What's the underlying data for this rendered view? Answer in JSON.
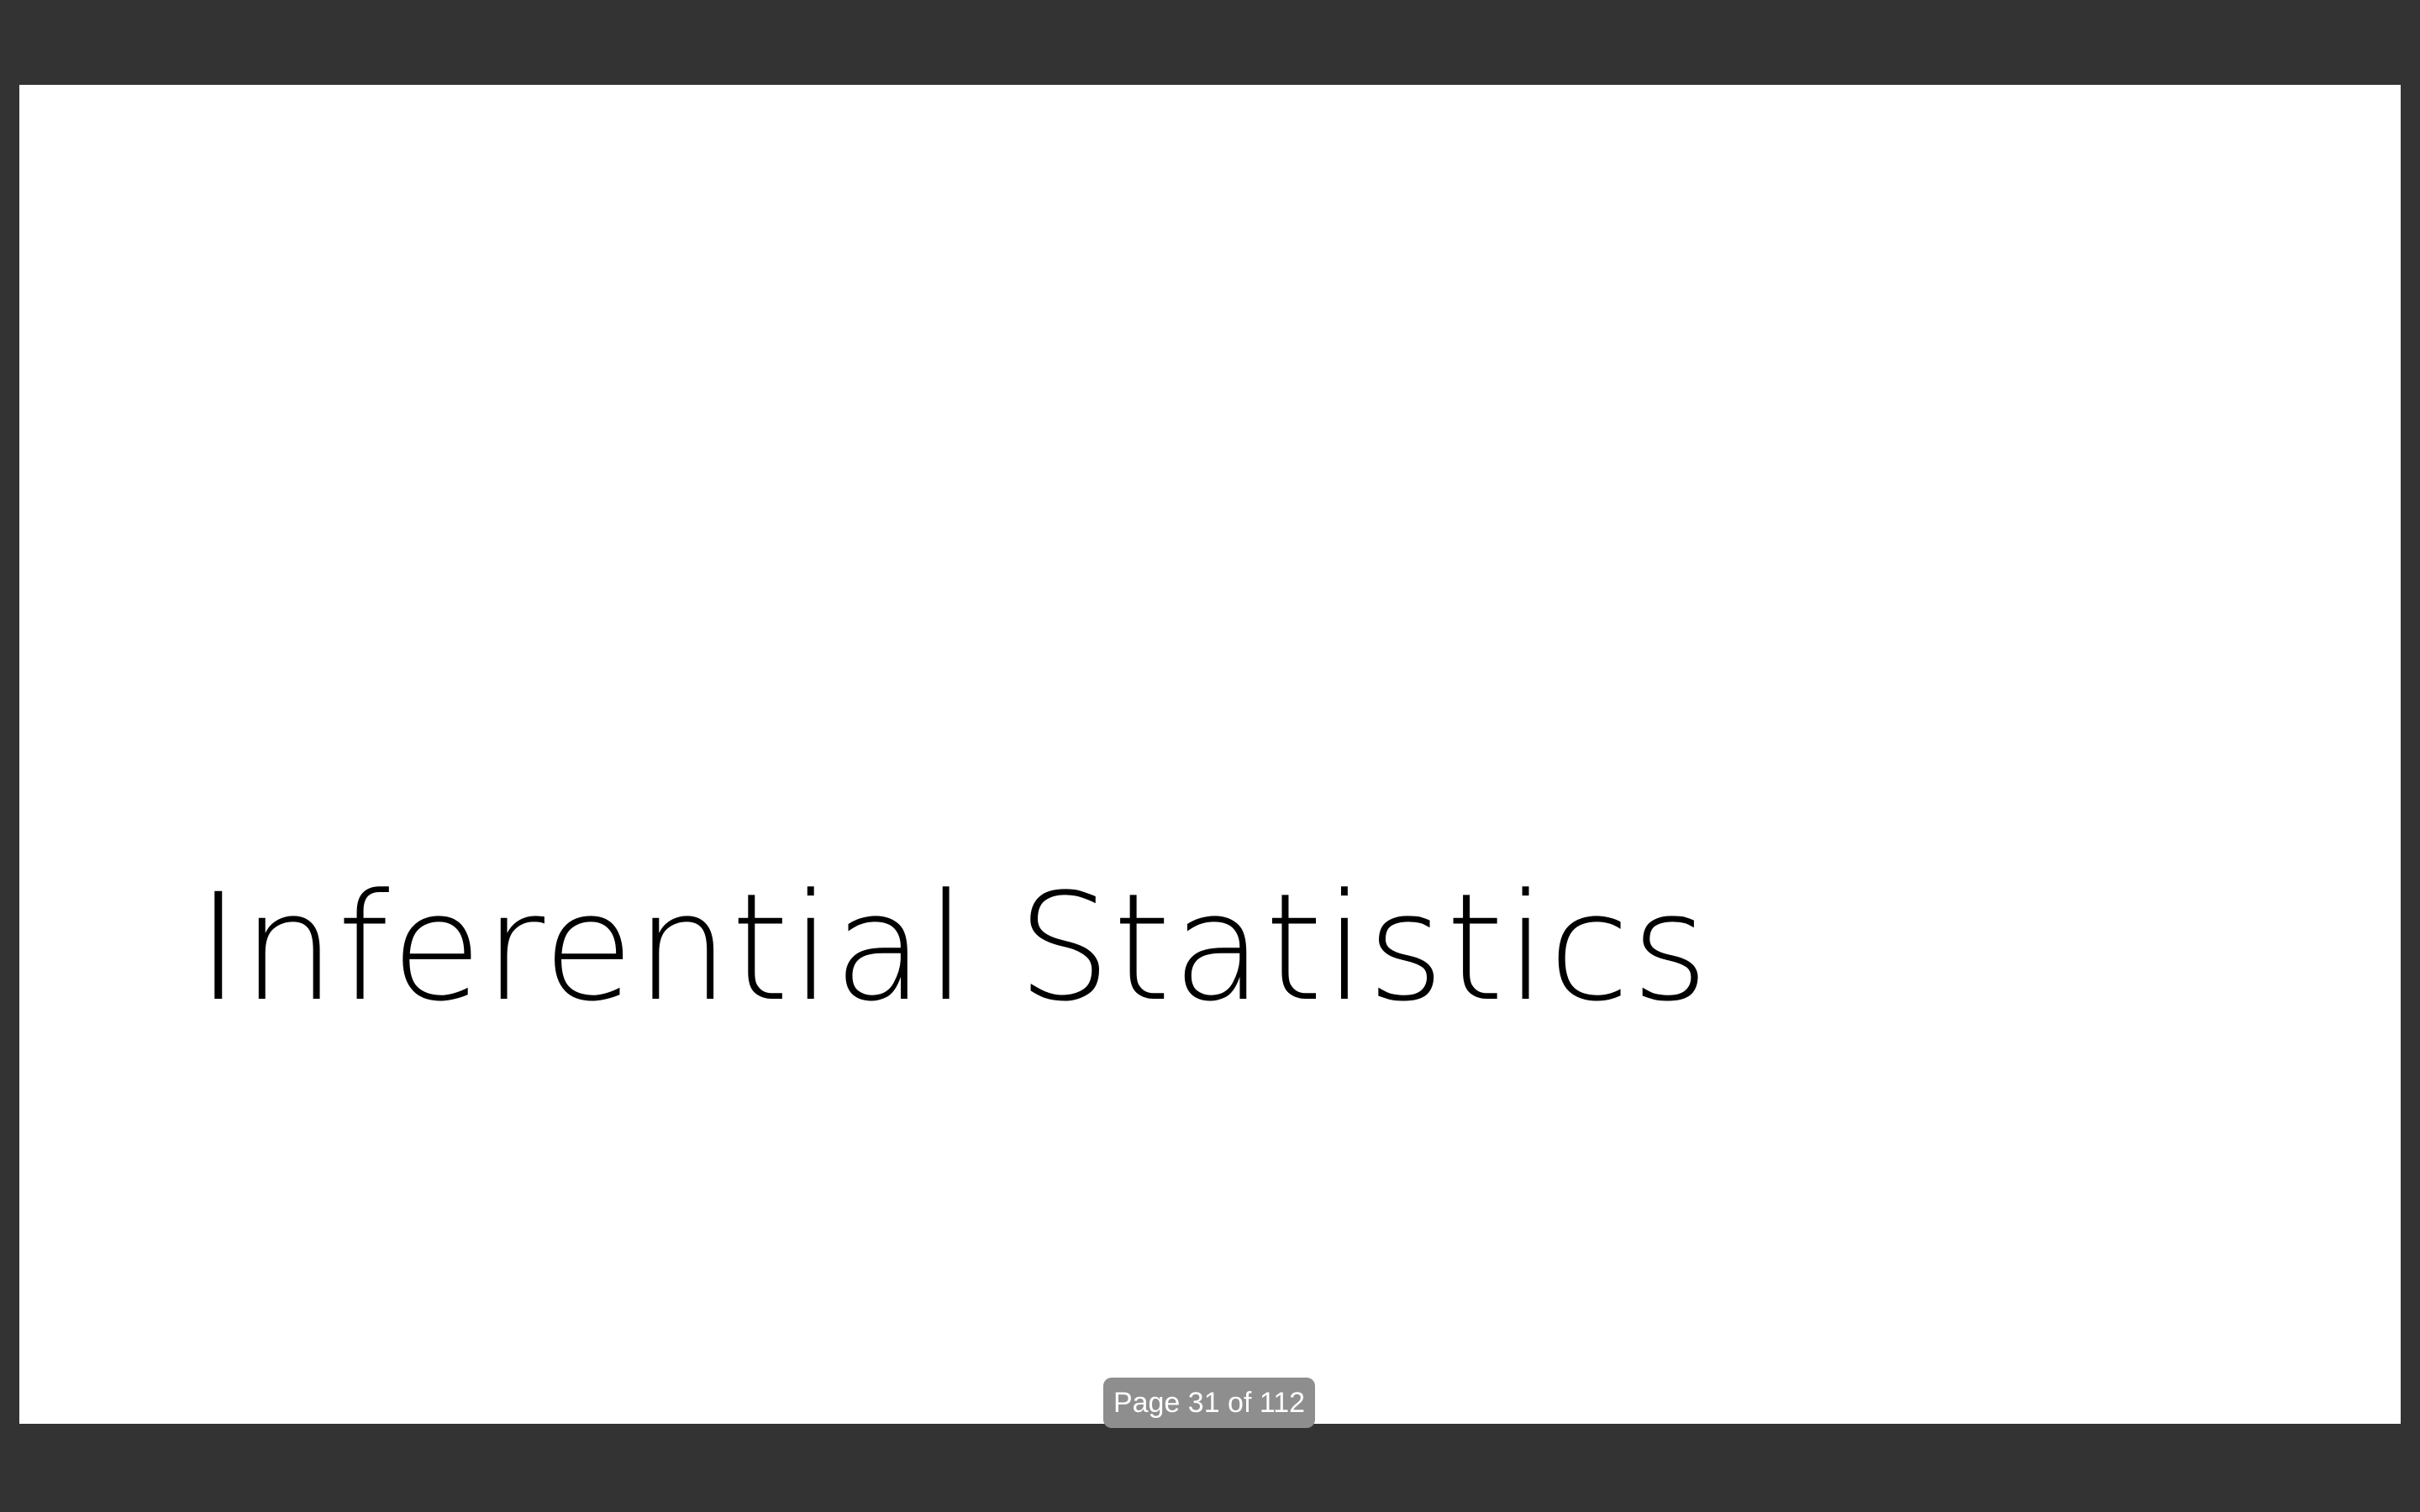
{
  "slide": {
    "title": "Inferential Statistics"
  },
  "pager": {
    "label": "Page 31 of 112",
    "current_page": 31,
    "total_pages": 112
  },
  "colors": {
    "viewer_background": "#333333",
    "page_background": "#ffffff",
    "indicator_background": "#8e8e8e"
  }
}
